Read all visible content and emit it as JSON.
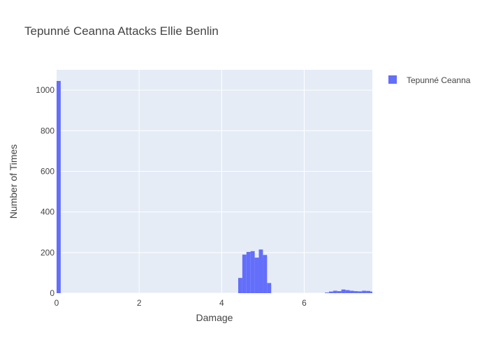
{
  "chart_data": {
    "type": "bar",
    "title": "Tepunné Ceanna Attacks Ellie Benlin",
    "xlabel": "Damage",
    "ylabel": "Number of Times",
    "xlim": [
      0,
      7.65
    ],
    "ylim": [
      0,
      1100
    ],
    "xticks": [
      0,
      2,
      4,
      6
    ],
    "yticks": [
      0,
      200,
      400,
      600,
      800,
      1000
    ],
    "grid": true,
    "legend_position": "right",
    "bin_width": 0.1,
    "series": [
      {
        "name": "Tepunné Ceanna",
        "color": "#636efa",
        "bins": [
          {
            "x": 0.0,
            "count": 1045
          },
          {
            "x": 4.4,
            "count": 75
          },
          {
            "x": 4.5,
            "count": 190
          },
          {
            "x": 4.6,
            "count": 203
          },
          {
            "x": 4.7,
            "count": 207
          },
          {
            "x": 4.8,
            "count": 175
          },
          {
            "x": 4.9,
            "count": 215
          },
          {
            "x": 5.0,
            "count": 188
          },
          {
            "x": 5.1,
            "count": 50
          },
          {
            "x": 6.5,
            "count": 3
          },
          {
            "x": 6.6,
            "count": 8
          },
          {
            "x": 6.7,
            "count": 12
          },
          {
            "x": 6.8,
            "count": 10
          },
          {
            "x": 6.9,
            "count": 18
          },
          {
            "x": 7.0,
            "count": 15
          },
          {
            "x": 7.1,
            "count": 12
          },
          {
            "x": 7.2,
            "count": 10
          },
          {
            "x": 7.3,
            "count": 9
          },
          {
            "x": 7.4,
            "count": 12
          },
          {
            "x": 7.5,
            "count": 11
          },
          {
            "x": 7.6,
            "count": 8
          }
        ]
      }
    ]
  }
}
